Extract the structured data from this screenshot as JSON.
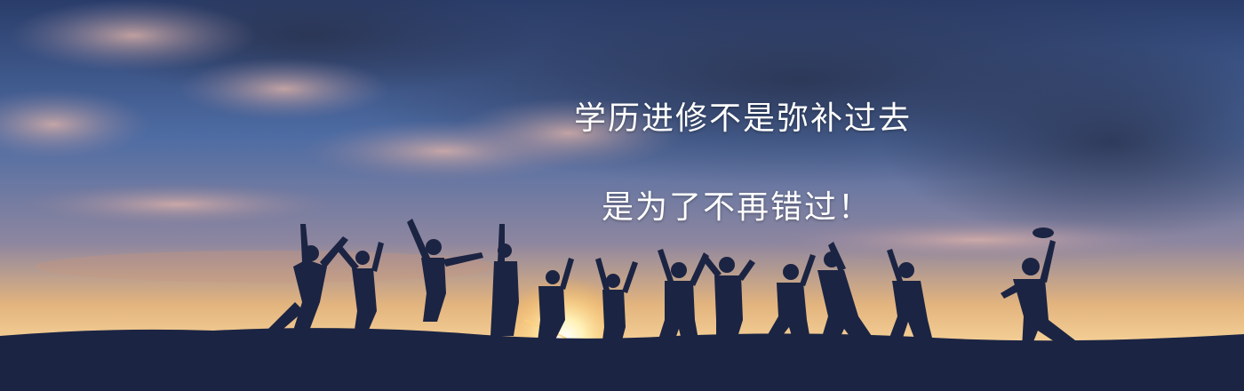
{
  "banner": {
    "headline_line1": "学历进修不是弥补过去",
    "headline_line2": "是为了不再错过！"
  },
  "colors": {
    "sky_top": "#24355f",
    "sky_mid": "#4d6aa0",
    "horizon": "#f2c98a",
    "ground": "#1a2340",
    "text": "#ffffff"
  },
  "icons": [
    "sunburst-icon",
    "people-silhouette-icon"
  ]
}
